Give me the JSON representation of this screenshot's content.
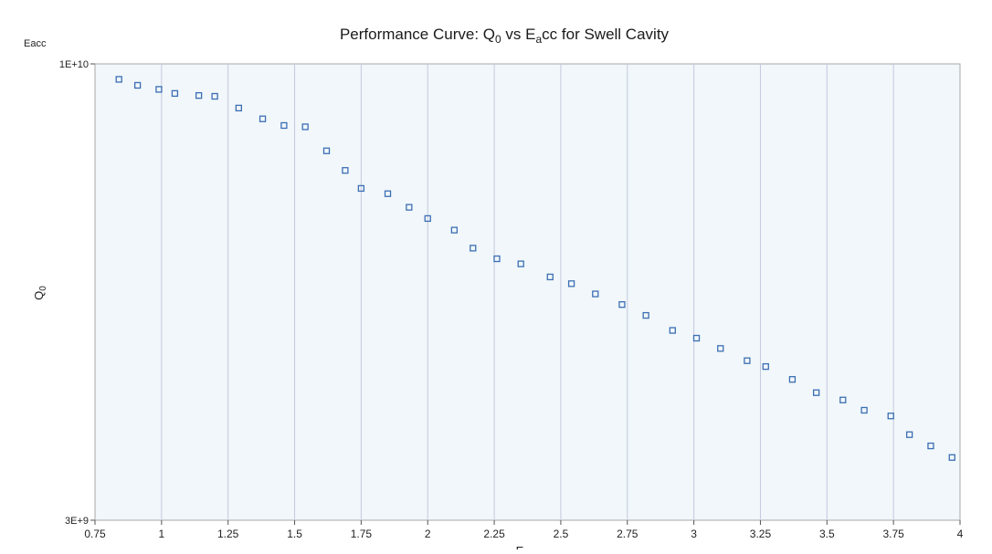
{
  "chart_data": {
    "type": "scatter",
    "title_main": "Performance Curve: Q",
    "title_sub1": "0",
    "title_mid": " vs E",
    "title_sub2": "a",
    "title_end": "cc for Swell Cavity",
    "ylabel_main": "Q",
    "ylabel_sub": "0",
    "corner_label": "Eacc",
    "xlabel": "E",
    "x_ticks": [
      "0.75",
      "1",
      "1.25",
      "1.5",
      "1.75",
      "2",
      "2.25",
      "2.5",
      "2.75",
      "3",
      "3.25",
      "3.5",
      "3.75",
      "4"
    ],
    "y_ticks": [
      "1E+10",
      "3E+9"
    ],
    "xlim": [
      0.75,
      4.0
    ],
    "ylim": [
      3000000000,
      10000000000
    ],
    "y_scale": "log",
    "grid": "vertical",
    "series": [
      {
        "marker": "open-square",
        "x": [
          0.84,
          0.91,
          0.99,
          1.05,
          1.14,
          1.2,
          1.29,
          1.38,
          1.46,
          1.54,
          1.62,
          1.69,
          1.75,
          1.85,
          1.93,
          2.0,
          2.1,
          2.17,
          2.26,
          2.35,
          2.46,
          2.54,
          2.63,
          2.73,
          2.82,
          2.92,
          3.01,
          3.1,
          3.2,
          3.27,
          3.37,
          3.46,
          3.56,
          3.64,
          3.74,
          3.81,
          3.89,
          3.97
        ],
        "y": [
          9600000000,
          9450000000,
          9350000000,
          9250000000,
          9200000000,
          9180000000,
          8900000000,
          8650000000,
          8500000000,
          8470000000,
          7950000000,
          7550000000,
          7200000000,
          7100000000,
          6850000000,
          6650000000,
          6450000000,
          6150000000,
          5980000000,
          5900000000,
          5700000000,
          5600000000,
          5450000000,
          5300000000,
          5150000000,
          4950000000,
          4850000000,
          4720000000,
          4570000000,
          4500000000,
          4350000000,
          4200000000,
          4120000000,
          4010000000,
          3950000000,
          3760000000,
          3650000000,
          3540000000
        ]
      }
    ],
    "colors": {
      "plot_bg": "#f1f7fa",
      "grid": "#c3c9de",
      "marker": "#3c6eb4",
      "axis": "#a7a7a7"
    }
  }
}
